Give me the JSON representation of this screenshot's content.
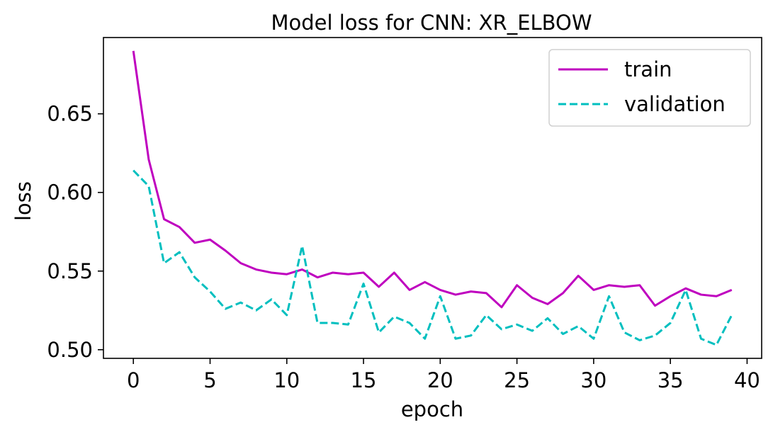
{
  "chart_data": {
    "type": "line",
    "title": "Model loss for CNN: XR_ELBOW",
    "xlabel": "epoch",
    "ylabel": "loss",
    "xlim": [
      -1.95,
      40.95
    ],
    "ylim": [
      0.4945,
      0.6985
    ],
    "xticks": [
      0,
      5,
      10,
      15,
      20,
      25,
      30,
      35,
      40
    ],
    "yticks": [
      0.5,
      0.55,
      0.6,
      0.65
    ],
    "xtick_labels": [
      "0",
      "5",
      "10",
      "15",
      "20",
      "25",
      "30",
      "35",
      "40"
    ],
    "ytick_labels": [
      "0.50",
      "0.55",
      "0.60",
      "0.65"
    ],
    "grid": false,
    "legend_position": "top-right",
    "x": [
      0,
      1,
      2,
      3,
      4,
      5,
      6,
      7,
      8,
      9,
      10,
      11,
      12,
      13,
      14,
      15,
      16,
      17,
      18,
      19,
      20,
      21,
      22,
      23,
      24,
      25,
      26,
      27,
      28,
      29,
      30,
      31,
      32,
      33,
      34,
      35,
      36,
      37,
      38,
      39
    ],
    "series": [
      {
        "name": "train",
        "color": "#bf00bf",
        "style": "solid",
        "values": [
          0.69,
          0.621,
          0.583,
          0.578,
          0.568,
          0.57,
          0.563,
          0.555,
          0.551,
          0.549,
          0.548,
          0.551,
          0.546,
          0.549,
          0.548,
          0.549,
          0.54,
          0.549,
          0.538,
          0.543,
          0.538,
          0.535,
          0.537,
          0.536,
          0.527,
          0.541,
          0.533,
          0.529,
          0.536,
          0.547,
          0.538,
          0.541,
          0.54,
          0.541,
          0.528,
          0.534,
          0.539,
          0.535,
          0.534,
          0.538
        ]
      },
      {
        "name": "validation",
        "color": "#00bfbf",
        "style": "dashed",
        "values": [
          0.614,
          0.604,
          0.555,
          0.562,
          0.546,
          0.537,
          0.526,
          0.53,
          0.525,
          0.532,
          0.522,
          0.566,
          0.517,
          0.517,
          0.516,
          0.542,
          0.511,
          0.521,
          0.517,
          0.507,
          0.534,
          0.507,
          0.509,
          0.522,
          0.513,
          0.516,
          0.512,
          0.52,
          0.51,
          0.515,
          0.507,
          0.534,
          0.511,
          0.506,
          0.509,
          0.517,
          0.538,
          0.507,
          0.503,
          0.522
        ]
      }
    ]
  }
}
